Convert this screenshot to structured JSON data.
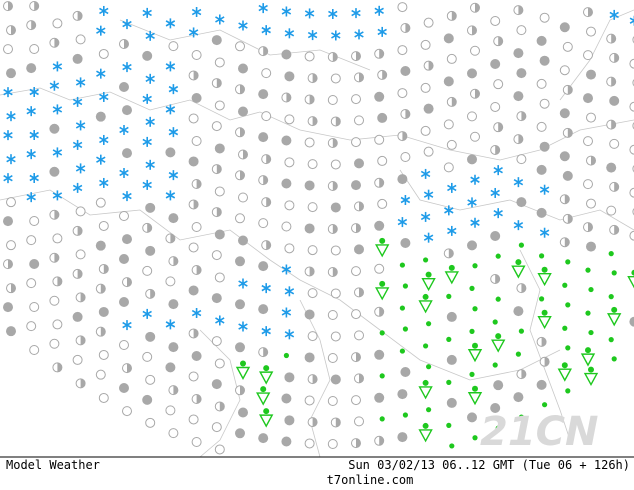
{
  "footer": {
    "left": "Model Weather",
    "timestamp": "Sun 03/02/13 06..12 GMT (Tue 06 + 126h)",
    "site": "t7online.com"
  },
  "watermark": "21CN"
}
